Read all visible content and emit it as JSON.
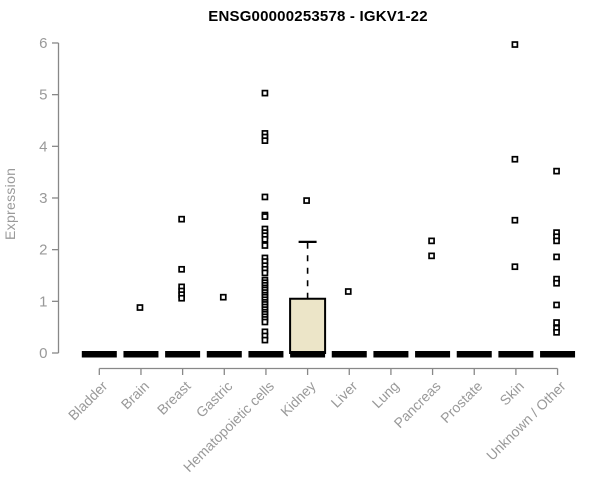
{
  "page": {
    "background": "#ffffff"
  },
  "chart_data": {
    "type": "boxplot",
    "title": "ENSG00000253578 - IGKV1-22",
    "ylabel": "Expression",
    "xlabel": "",
    "ylim": [
      0,
      6
    ],
    "yticks": [
      0,
      1,
      2,
      3,
      4,
      5,
      6
    ],
    "grid": "off",
    "legend": "none",
    "point_marker": "open-square",
    "categories": [
      "Bladder",
      "Brain",
      "Breast",
      "Gastric",
      "Hematopoietic cells",
      "Kidney",
      "Liver",
      "Lung",
      "Pancreas",
      "Prostate",
      "Skin",
      "Unknown / Other"
    ],
    "series": [
      {
        "category": "Bladder",
        "box": {
          "q1": 0,
          "median": 0,
          "q3": 0,
          "whisker_low": 0,
          "whisker_high": 0
        },
        "points": []
      },
      {
        "category": "Brain",
        "box": {
          "q1": 0,
          "median": 0,
          "q3": 0,
          "whisker_low": 0,
          "whisker_high": 0
        },
        "points": [
          0.88
        ]
      },
      {
        "category": "Breast",
        "box": {
          "q1": 0,
          "median": 0,
          "q3": 0,
          "whisker_low": 0,
          "whisker_high": 0
        },
        "points": [
          2.59,
          1.62,
          1.28,
          1.2,
          1.13,
          1.06
        ]
      },
      {
        "category": "Gastric",
        "box": {
          "q1": 0,
          "median": 0,
          "q3": 0,
          "whisker_low": 0,
          "whisker_high": 0
        },
        "points": [
          1.08
        ]
      },
      {
        "category": "Hematopoietic cells",
        "box": {
          "q1": 0,
          "median": 0,
          "q3": 0,
          "whisker_low": 0,
          "whisker_high": 0
        },
        "points": [
          5.03,
          4.25,
          4.18,
          4.11,
          3.02,
          2.67,
          2.64,
          2.4,
          2.33,
          2.27,
          2.2,
          2.08,
          1.84,
          1.77,
          1.69,
          1.62,
          1.55,
          1.41,
          1.36,
          1.31,
          1.26,
          1.22,
          1.17,
          1.12,
          1.08,
          1.03,
          0.98,
          0.94,
          0.89,
          0.84,
          0.79,
          0.75,
          0.7,
          0.65,
          0.6,
          0.41,
          0.33,
          0.25
        ]
      },
      {
        "category": "Kidney",
        "box": {
          "q1": 0,
          "median": 0,
          "q3": 1.05,
          "whisker_low": 0,
          "whisker_high": 2.15
        },
        "points": [
          2.95
        ]
      },
      {
        "category": "Liver",
        "box": {
          "q1": 0,
          "median": 0,
          "q3": 0,
          "whisker_low": 0,
          "whisker_high": 0
        },
        "points": [
          1.19
        ]
      },
      {
        "category": "Lung",
        "box": {
          "q1": 0,
          "median": 0,
          "q3": 0,
          "whisker_low": 0,
          "whisker_high": 0
        },
        "points": []
      },
      {
        "category": "Pancreas",
        "box": {
          "q1": 0,
          "median": 0,
          "q3": 0,
          "whisker_low": 0,
          "whisker_high": 0
        },
        "points": [
          2.17,
          1.88
        ]
      },
      {
        "category": "Prostate",
        "box": {
          "q1": 0,
          "median": 0,
          "q3": 0,
          "whisker_low": 0,
          "whisker_high": 0
        },
        "points": []
      },
      {
        "category": "Skin",
        "box": {
          "q1": 0,
          "median": 0,
          "q3": 0,
          "whisker_low": 0,
          "whisker_high": 0
        },
        "points": [
          5.97,
          3.75,
          2.57,
          1.67
        ]
      },
      {
        "category": "Unknown / Other",
        "box": {
          "q1": 0,
          "median": 0,
          "q3": 0,
          "whisker_low": 0,
          "whisker_high": 0
        },
        "points": [
          3.52,
          2.33,
          2.25,
          2.17,
          1.86,
          1.43,
          1.35,
          0.93,
          0.59,
          0.48,
          0.4
        ]
      }
    ],
    "colors": {
      "box_fill": "#ECE5C8",
      "box_stroke": "#000000",
      "point": "#000000",
      "point_fill": "#FFFFFF",
      "axis": "#888888",
      "label": "#999999",
      "title": "#000000",
      "background": "#FFFFFF"
    }
  }
}
